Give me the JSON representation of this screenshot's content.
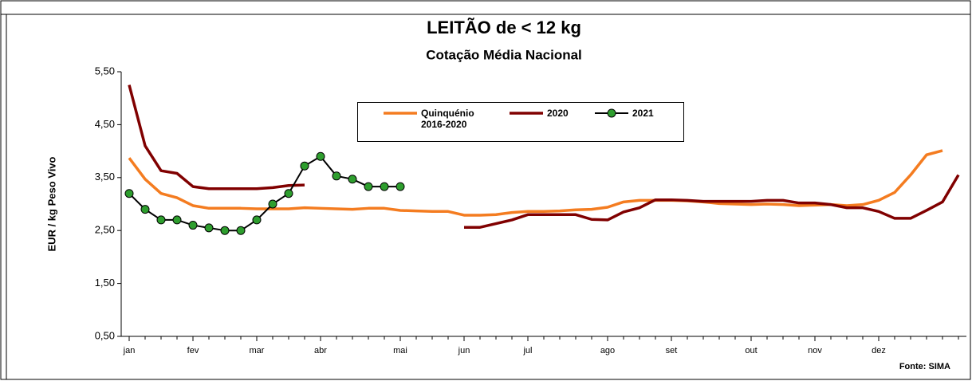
{
  "chart_data": {
    "type": "line",
    "title": "LEITÃO de < 12 kg",
    "subtitle": "Cotação Média Nacional",
    "y_label": "EUR / kg Peso Vivo",
    "source": "Fonte: SIMA",
    "x": [
      1,
      2,
      3,
      4,
      5,
      6,
      7,
      8,
      9,
      10,
      11,
      12,
      13,
      14,
      15,
      16,
      17,
      18,
      19,
      20,
      21,
      22,
      23,
      24,
      25,
      26,
      27,
      28,
      29,
      30,
      31,
      32,
      33,
      34,
      35,
      36,
      37,
      38,
      39,
      40,
      41,
      42,
      43,
      44,
      45,
      46,
      47,
      48,
      49,
      50,
      51,
      52,
      53
    ],
    "xlim": [
      0.5,
      53.5
    ],
    "xticks": [
      {
        "value": 1,
        "label": "jan"
      },
      {
        "value": 5,
        "label": "fev"
      },
      {
        "value": 9,
        "label": "mar"
      },
      {
        "value": 13,
        "label": "abr"
      },
      {
        "value": 18,
        "label": "mai"
      },
      {
        "value": 22,
        "label": "jun"
      },
      {
        "value": 26,
        "label": "jul"
      },
      {
        "value": 31,
        "label": "ago"
      },
      {
        "value": 35,
        "label": "set"
      },
      {
        "value": 40,
        "label": "out"
      },
      {
        "value": 44,
        "label": "nov"
      },
      {
        "value": 48,
        "label": "dez"
      }
    ],
    "ylim": [
      0.5,
      5.5
    ],
    "yticks": [
      {
        "value": 0.5,
        "label": "0,50"
      },
      {
        "value": 1.5,
        "label": "1,50"
      },
      {
        "value": 2.5,
        "label": "2,50"
      },
      {
        "value": 3.5,
        "label": "3,50"
      },
      {
        "value": 4.5,
        "label": "4,50"
      },
      {
        "value": 5.5,
        "label": "5,50"
      }
    ],
    "grid": false,
    "series": [
      {
        "name": "Quinquénio 2016-2020",
        "color": "#f47c20",
        "markers": false,
        "values": [
          3.87,
          3.47,
          3.2,
          3.12,
          2.97,
          2.92,
          2.92,
          2.92,
          2.91,
          2.91,
          2.91,
          2.93,
          2.92,
          2.91,
          2.9,
          2.92,
          2.92,
          2.88,
          2.87,
          2.86,
          2.86,
          2.79,
          2.79,
          2.8,
          2.84,
          2.86,
          2.86,
          2.87,
          2.89,
          2.9,
          2.94,
          3.04,
          3.07,
          3.07,
          3.07,
          3.06,
          3.04,
          3.01,
          3.0,
          2.99,
          3.0,
          2.99,
          2.97,
          2.98,
          2.99,
          2.97,
          2.99,
          3.07,
          3.22,
          3.55,
          3.93,
          4.01,
          null
        ]
      },
      {
        "name": "2020",
        "color": "#800000",
        "markers": false,
        "values": [
          5.25,
          4.1,
          3.63,
          3.58,
          3.33,
          3.29,
          3.29,
          3.29,
          3.29,
          3.31,
          3.35,
          3.36,
          null,
          null,
          null,
          null,
          null,
          null,
          null,
          null,
          null,
          2.56,
          2.56,
          2.63,
          2.7,
          2.8,
          2.8,
          2.8,
          2.8,
          2.71,
          2.7,
          2.85,
          2.93,
          3.08,
          3.08,
          3.07,
          3.05,
          3.05,
          3.05,
          3.05,
          3.07,
          3.07,
          3.02,
          3.02,
          2.99,
          2.93,
          2.93,
          2.86,
          2.73,
          2.73,
          2.88,
          3.04,
          3.55
        ]
      },
      {
        "name": "2021",
        "color": "#000000",
        "marker_color": "#2e9e2e",
        "markers": true,
        "values": [
          3.2,
          2.9,
          2.7,
          2.7,
          2.6,
          2.55,
          2.5,
          2.5,
          2.7,
          3.0,
          3.2,
          3.72,
          3.9,
          3.53,
          3.47,
          3.33,
          3.33,
          3.33,
          null,
          null,
          null,
          null,
          null,
          null,
          null,
          null,
          null,
          null,
          null,
          null,
          null,
          null,
          null,
          null,
          null,
          null,
          null,
          null,
          null,
          null,
          null,
          null,
          null,
          null,
          null,
          null,
          null,
          null,
          null,
          null,
          null,
          null,
          null
        ]
      }
    ]
  }
}
